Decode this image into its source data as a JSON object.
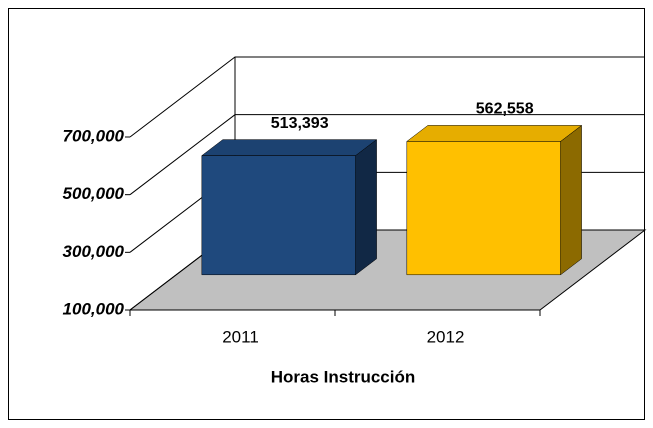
{
  "chart_data": {
    "type": "bar3d",
    "x_label": "Horas Instrucción",
    "categories": [
      "2011",
      "2012"
    ],
    "values": [
      513393,
      562558
    ],
    "value_labels": [
      "513,393",
      "562,558"
    ],
    "colors": [
      "#1f497d",
      "#ffc000"
    ],
    "ylim": [
      100000,
      700000
    ],
    "yticks": [
      {
        "value": 100000,
        "label": "100,000"
      },
      {
        "value": 300000,
        "label": "300,000"
      },
      {
        "value": 500000,
        "label": "500,000"
      },
      {
        "value": 700000,
        "label": "700,000"
      }
    ],
    "grid": true
  }
}
